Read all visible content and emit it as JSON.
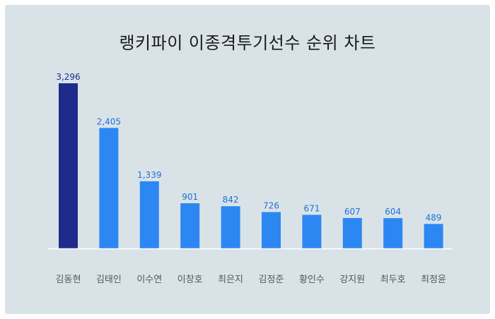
{
  "chart_data": {
    "type": "bar",
    "title": "랭키파이 이종격투기선수 순위 차트",
    "xlabel": "",
    "ylabel": "",
    "categories": [
      "김동현",
      "김태인",
      "이수연",
      "이창호",
      "최은지",
      "김정준",
      "황인수",
      "강지원",
      "최두호",
      "최정윤"
    ],
    "values": [
      3296,
      2405,
      1339,
      901,
      842,
      726,
      671,
      607,
      604,
      489
    ],
    "value_labels": [
      "3,296",
      "2,405",
      "1,339",
      "901",
      "842",
      "726",
      "671",
      "607",
      "604",
      "489"
    ],
    "ylim": [
      0,
      3296
    ],
    "grid": false,
    "legend": "none",
    "colors": {
      "highlight_bar": "#1f2b8c",
      "bar": "#2d87f3",
      "highlight_label": "#1f2b8c",
      "label": "#1e6fd9",
      "axis": "#ffffff",
      "category_text": "#555555",
      "background": "#d9e3e7"
    }
  }
}
